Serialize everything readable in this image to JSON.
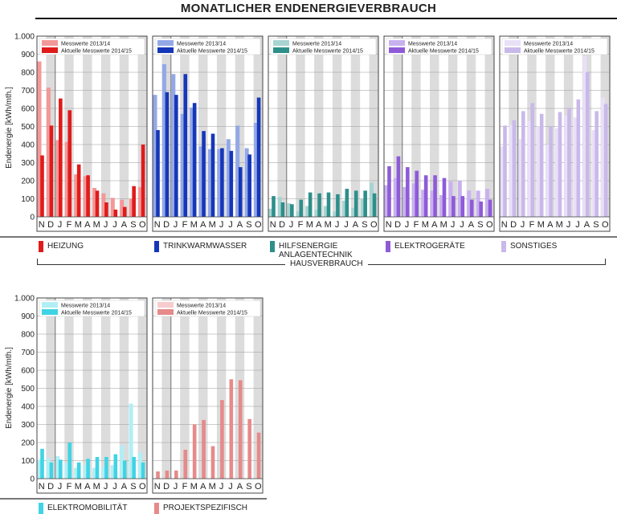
{
  "title": "MONATLICHER ENDENERGIEVERBRAUCH",
  "ylabel": "Endenergie [kWh/mth.]",
  "group_label": "HAUSVERBRAUCH",
  "legend_prev": "Messwerte 2013/14",
  "legend_curr": "Aktuelle Messwerte 2014/15",
  "chart_data": [
    {
      "type": "bar",
      "name": "HEIZUNG",
      "color": "#e01b1b",
      "light": "#f39898",
      "ylim": [
        0,
        1000
      ],
      "categories": [
        "N",
        "D",
        "J",
        "F",
        "M",
        "A",
        "M",
        "J",
        "J",
        "A",
        "S",
        "O"
      ],
      "series": [
        {
          "name": "Messwerte 2013/14",
          "values": [
            860,
            715,
            425,
            415,
            235,
            225,
            160,
            130,
            105,
            95,
            100,
            165
          ]
        },
        {
          "name": "Aktuelle Messwerte 2014/15",
          "values": [
            340,
            505,
            655,
            590,
            290,
            230,
            145,
            80,
            40,
            55,
            170,
            400
          ]
        }
      ]
    },
    {
      "type": "bar",
      "name": "TRINKWARMWASSER",
      "color": "#1637b8",
      "light": "#93a8e6",
      "ylim": [
        0,
        1000
      ],
      "categories": [
        "N",
        "D",
        "J",
        "F",
        "M",
        "A",
        "M",
        "J",
        "J",
        "A",
        "S",
        "O"
      ],
      "series": [
        {
          "name": "Messwerte 2013/14",
          "values": [
            675,
            845,
            790,
            570,
            605,
            390,
            375,
            375,
            430,
            505,
            380,
            520
          ]
        },
        {
          "name": "Aktuelle Messwerte 2014/15",
          "values": [
            480,
            690,
            675,
            790,
            630,
            475,
            460,
            380,
            365,
            275,
            345,
            660
          ]
        }
      ]
    },
    {
      "type": "bar",
      "name": "HILFSENERGIE ANLAGENTECHNIK",
      "color": "#2e8f8a",
      "light": "#a8d4d2",
      "ylim": [
        0,
        1000
      ],
      "categories": [
        "N",
        "D",
        "J",
        "F",
        "M",
        "A",
        "M",
        "J",
        "J",
        "A",
        "S",
        "O"
      ],
      "series": [
        {
          "name": "Messwerte 2013/14",
          "values": [
            45,
            110,
            75,
            30,
            60,
            40,
            60,
            30,
            90,
            50,
            100,
            190
          ]
        },
        {
          "name": "Aktuelle Messwerte 2014/15",
          "values": [
            115,
            80,
            70,
            95,
            135,
            130,
            135,
            125,
            155,
            145,
            145,
            130
          ]
        }
      ]
    },
    {
      "type": "bar",
      "name": "ELEKTROGERÄTE",
      "color": "#8e5bd8",
      "light": "#c9b1ef",
      "ylim": [
        0,
        1000
      ],
      "categories": [
        "N",
        "D",
        "J",
        "F",
        "M",
        "A",
        "M",
        "J",
        "J",
        "A",
        "S",
        "O"
      ],
      "series": [
        {
          "name": "Messwerte 2013/14",
          "values": [
            175,
            215,
            165,
            185,
            150,
            145,
            120,
            195,
            200,
            145,
            145,
            155
          ]
        },
        {
          "name": "Aktuelle Messwerte 2014/15",
          "values": [
            280,
            335,
            275,
            255,
            230,
            230,
            215,
            115,
            115,
            95,
            85,
            95
          ]
        }
      ]
    },
    {
      "type": "bar",
      "name": "SONSTIGES",
      "color": "#c9b9ea",
      "light": "#e9e0f8",
      "ylim": [
        0,
        1000
      ],
      "categories": [
        "N",
        "D",
        "J",
        "F",
        "M",
        "A",
        "M",
        "J",
        "J",
        "A",
        "S",
        "O"
      ],
      "series": [
        {
          "name": "Messwerte 2013/14",
          "values": [
            390,
            510,
            430,
            530,
            500,
            400,
            490,
            560,
            550,
            890,
            480,
            660
          ]
        },
        {
          "name": "Aktuelle Messwerte 2014/15",
          "values": [
            505,
            535,
            585,
            630,
            570,
            500,
            580,
            600,
            650,
            800,
            585,
            625
          ]
        }
      ]
    },
    {
      "type": "bar",
      "name": "ELEKTROMOBILITÄT",
      "color": "#3fd4e4",
      "light": "#b2eef5",
      "ylim": [
        0,
        1000
      ],
      "categories": [
        "N",
        "D",
        "J",
        "F",
        "M",
        "A",
        "M",
        "J",
        "J",
        "A",
        "S",
        "O"
      ],
      "series": [
        {
          "name": "Messwerte 2013/14",
          "values": [
            105,
            115,
            125,
            85,
            60,
            75,
            60,
            65,
            75,
            185,
            415,
            145
          ]
        },
        {
          "name": "Aktuelle Messwerte 2014/15",
          "values": [
            165,
            90,
            105,
            200,
            90,
            110,
            120,
            120,
            135,
            100,
            120,
            90
          ]
        }
      ]
    },
    {
      "type": "bar",
      "name": "PROJEKTSPEZIFISCH",
      "color": "#e68a8a",
      "light": "#f7cccc",
      "ylim": [
        0,
        1000
      ],
      "categories": [
        "N",
        "D",
        "J",
        "F",
        "M",
        "A",
        "M",
        "J",
        "J",
        "A",
        "S",
        "O"
      ],
      "series": [
        {
          "name": "Messwerte 2013/14",
          "values": [
            0,
            0,
            0,
            0,
            0,
            0,
            0,
            0,
            0,
            0,
            0,
            0
          ]
        },
        {
          "name": "Aktuelle Messwerte 2014/15",
          "values": [
            40,
            45,
            45,
            160,
            300,
            325,
            180,
            435,
            550,
            545,
            330,
            255
          ]
        }
      ]
    }
  ]
}
